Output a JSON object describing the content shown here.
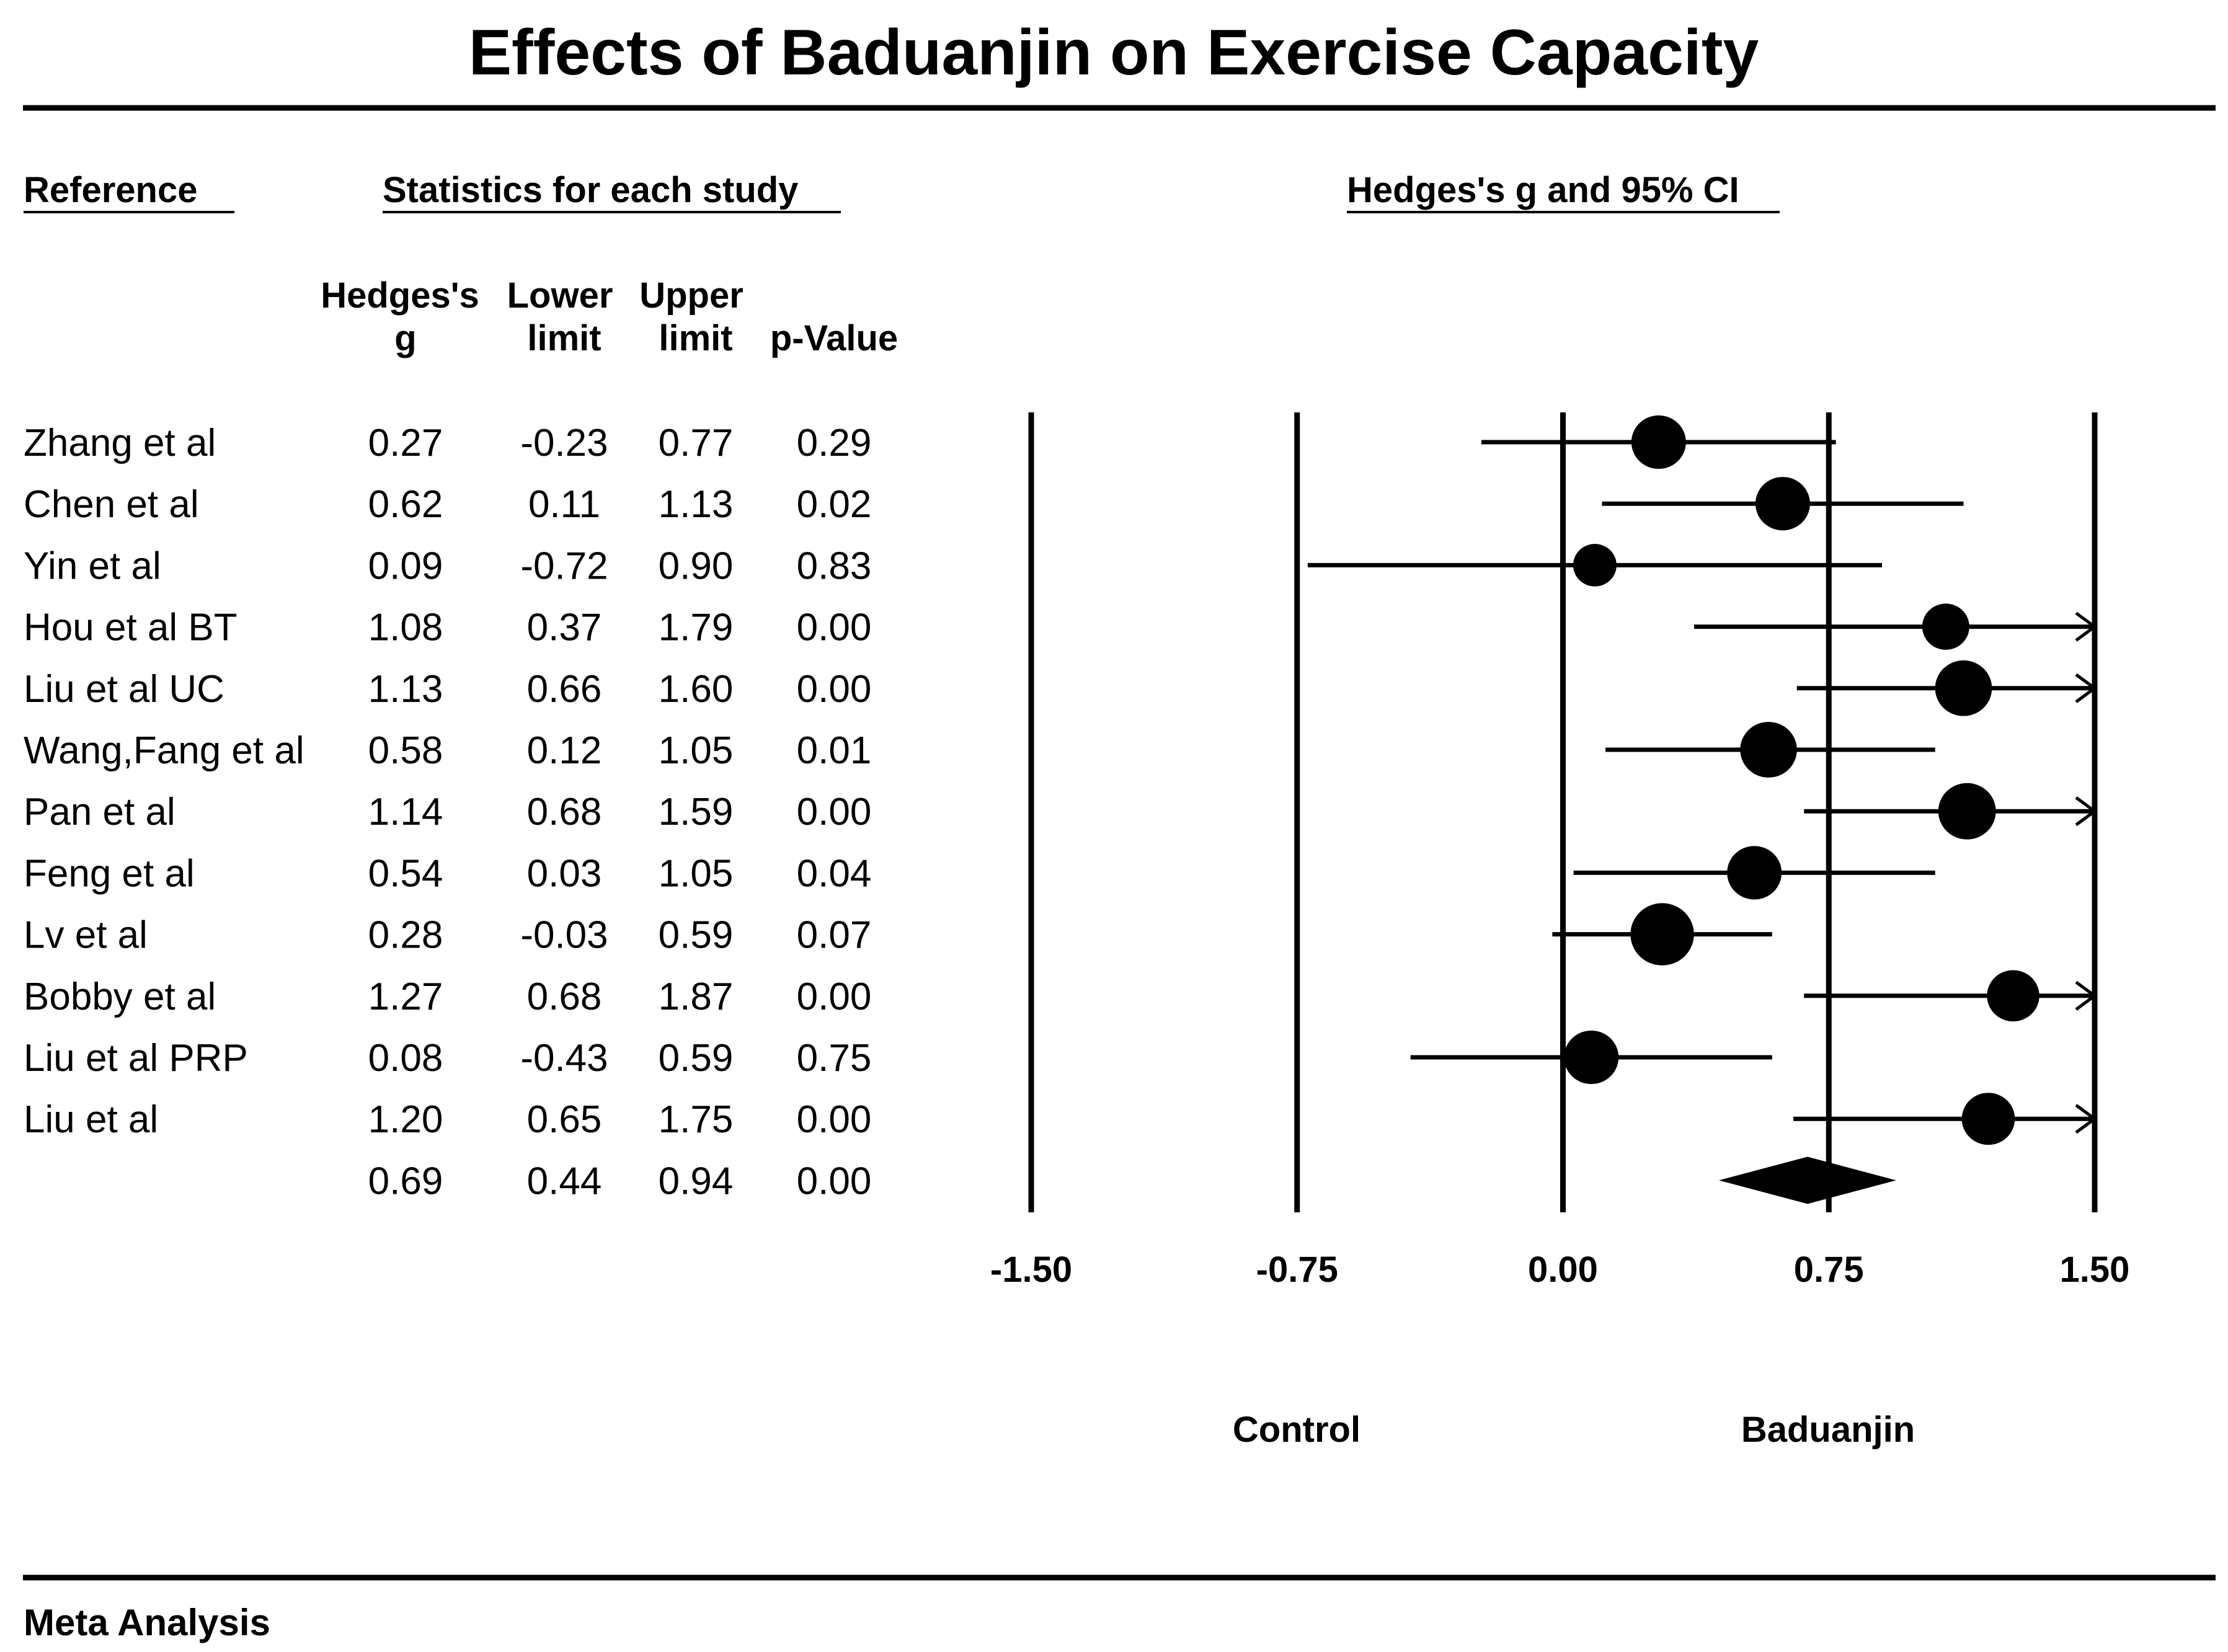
{
  "chart_data": {
    "type": "forest",
    "title": "Effects of Baduanjin on Exercise Capacity",
    "headers": {
      "reference": "Reference",
      "statistics": "Statistics for each study",
      "plot": "Hedges's g and 95% CI"
    },
    "columns": {
      "g_line1": "Hedges's",
      "g_line2": "g",
      "lower_line1": "Lower",
      "lower_line2": "limit",
      "upper_line1": "Upper",
      "upper_line2": "limit",
      "p_line2": "p-Value"
    },
    "studies": [
      {
        "name": "Zhang et al",
        "g": "0.27",
        "lower": "-0.23",
        "upper": "0.77",
        "p": "0.29",
        "g_val": 0.27,
        "lower_val": -0.23,
        "upper_val": 0.77,
        "weight": 3
      },
      {
        "name": "Chen et al",
        "g": "0.62",
        "lower": "0.11",
        "upper": "1.13",
        "p": "0.02",
        "g_val": 0.62,
        "lower_val": 0.11,
        "upper_val": 1.13,
        "weight": 3
      },
      {
        "name": "Yin et al",
        "g": "0.09",
        "lower": "-0.72",
        "upper": "0.90",
        "p": "0.83",
        "g_val": 0.09,
        "lower_val": -0.72,
        "upper_val": 0.9,
        "weight": 1.5
      },
      {
        "name": "Hou et al BT",
        "g": "1.08",
        "lower": "0.37",
        "upper": "1.79",
        "p": "0.00",
        "g_val": 1.08,
        "lower_val": 0.37,
        "upper_val": 1.79,
        "weight": 2
      },
      {
        "name": "Liu et al UC",
        "g": "1.13",
        "lower": "0.66",
        "upper": "1.60",
        "p": "0.00",
        "g_val": 1.13,
        "lower_val": 0.66,
        "upper_val": 1.6,
        "weight": 3.3
      },
      {
        "name": "Wang,Fang et al",
        "g": "0.58",
        "lower": "0.12",
        "upper": "1.05",
        "p": "0.01",
        "g_val": 0.58,
        "lower_val": 0.12,
        "upper_val": 1.05,
        "weight": 3.3
      },
      {
        "name": "Pan et al",
        "g": "1.14",
        "lower": "0.68",
        "upper": "1.59",
        "p": "0.00",
        "g_val": 1.14,
        "lower_val": 0.68,
        "upper_val": 1.59,
        "weight": 3.4
      },
      {
        "name": "Feng et al",
        "g": "0.54",
        "lower": "0.03",
        "upper": "1.05",
        "p": "0.04",
        "g_val": 0.54,
        "lower_val": 0.03,
        "upper_val": 1.05,
        "weight": 3
      },
      {
        "name": "Lv et al",
        "g": "0.28",
        "lower": "-0.03",
        "upper": "0.59",
        "p": "0.07",
        "g_val": 0.28,
        "lower_val": -0.03,
        "upper_val": 0.59,
        "weight": 4.2
      },
      {
        "name": "Bobby et al",
        "g": "1.27",
        "lower": "0.68",
        "upper": "1.87",
        "p": "0.00",
        "g_val": 1.27,
        "lower_val": 0.68,
        "upper_val": 1.87,
        "weight": 2.7
      },
      {
        "name": "Liu et al PRP",
        "g": "0.08",
        "lower": "-0.43",
        "upper": "0.59",
        "p": "0.75",
        "g_val": 0.08,
        "lower_val": -0.43,
        "upper_val": 0.59,
        "weight": 3
      },
      {
        "name": "Liu et al",
        "g": "1.20",
        "lower": "0.65",
        "upper": "1.75",
        "p": "0.00",
        "g_val": 1.2,
        "lower_val": 0.65,
        "upper_val": 1.75,
        "weight": 2.8
      }
    ],
    "pooled": {
      "g": "0.69",
      "lower": "0.44",
      "upper": "0.94",
      "p": "0.00",
      "g_val": 0.69,
      "lower_val": 0.44,
      "upper_val": 0.94
    },
    "x_axis": {
      "range": [
        -1.5,
        1.5
      ],
      "ticks": [
        -1.5,
        -0.75,
        0,
        0.75,
        1.5
      ],
      "tick_labels": [
        "-1.50",
        "-0.75",
        "0.00",
        "0.75",
        "1.50"
      ]
    },
    "favours_left": "Control",
    "favours_right": "Baduanjin",
    "footer": "Meta Analysis"
  }
}
